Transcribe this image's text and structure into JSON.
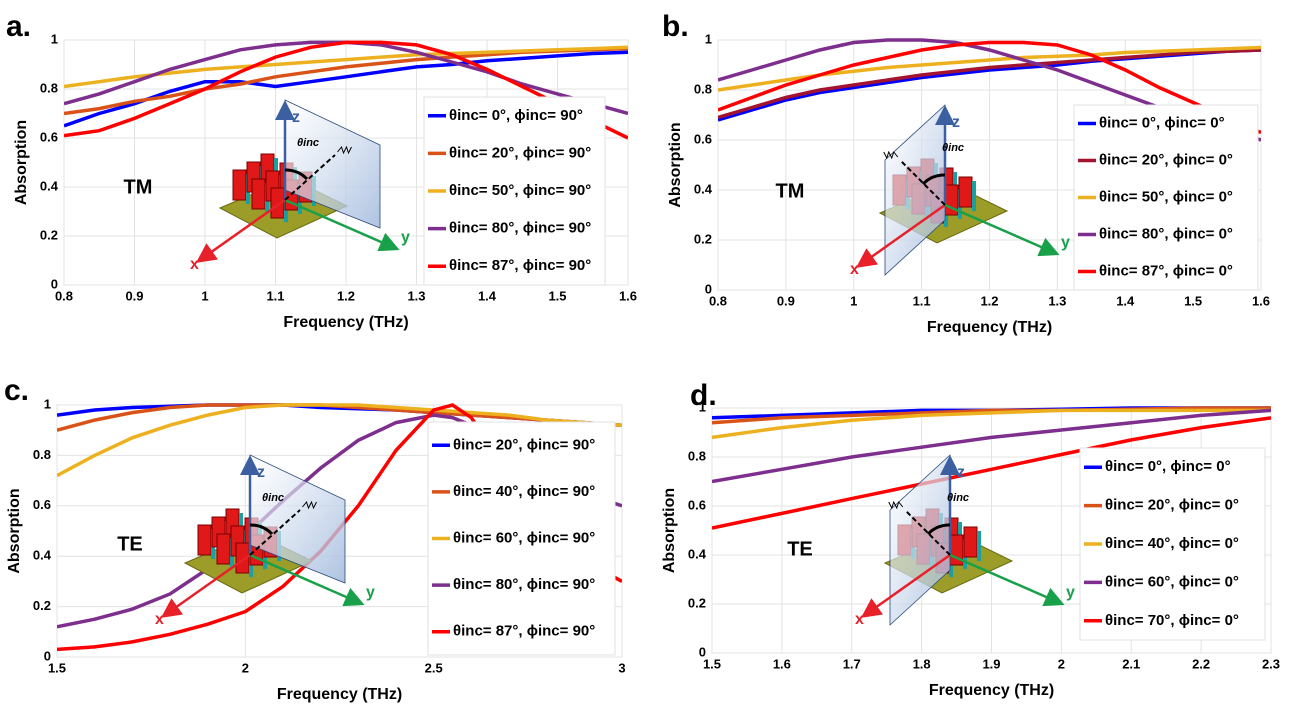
{
  "chart_data": [
    {
      "type": "line",
      "label": "a.",
      "xlabel": "Frequency (THz)",
      "ylabel": "Absorption",
      "annotations": [
        "TM",
        "x",
        "y",
        "z",
        "θinc"
      ],
      "x": [
        0.8,
        0.85,
        0.9,
        0.95,
        1.0,
        1.05,
        1.1,
        1.15,
        1.2,
        1.25,
        1.3,
        1.35,
        1.4,
        1.45,
        1.5,
        1.55,
        1.6
      ],
      "xlim": [
        0.8,
        1.6
      ],
      "ylim": [
        0,
        1
      ],
      "xticks": [
        0.8,
        0.9,
        1,
        1.1,
        1.2,
        1.3,
        1.4,
        1.5,
        1.6
      ],
      "yticks": [
        0,
        0.2,
        0.4,
        0.6,
        0.8,
        1
      ],
      "grid": true,
      "series": [
        {
          "name": "θinc= 0°, ϕinc= 90°",
          "color": "#0000ff",
          "values": [
            0.65,
            0.7,
            0.74,
            0.79,
            0.83,
            0.83,
            0.81,
            0.83,
            0.85,
            0.87,
            0.89,
            0.9,
            0.915,
            0.925,
            0.935,
            0.945,
            0.95
          ]
        },
        {
          "name": "θinc= 20°, ϕinc= 90°",
          "color": "#d95319",
          "values": [
            0.7,
            0.72,
            0.75,
            0.77,
            0.8,
            0.82,
            0.85,
            0.87,
            0.89,
            0.905,
            0.92,
            0.93,
            0.94,
            0.95,
            0.955,
            0.96,
            0.965
          ]
        },
        {
          "name": "θinc= 50°, ϕinc= 90°",
          "color": "#edb120",
          "values": [
            0.81,
            0.83,
            0.85,
            0.865,
            0.88,
            0.89,
            0.9,
            0.91,
            0.92,
            0.93,
            0.94,
            0.945,
            0.95,
            0.955,
            0.96,
            0.965,
            0.97
          ]
        },
        {
          "name": "θinc= 80°, ϕinc= 90°",
          "color": "#7e2f8e",
          "values": [
            0.74,
            0.78,
            0.83,
            0.88,
            0.92,
            0.96,
            0.98,
            0.99,
            0.99,
            0.98,
            0.95,
            0.91,
            0.87,
            0.82,
            0.78,
            0.74,
            0.7
          ]
        },
        {
          "name": "θinc= 87°, ϕinc= 90°",
          "color": "#ff0000",
          "values": [
            0.61,
            0.63,
            0.68,
            0.74,
            0.8,
            0.87,
            0.93,
            0.97,
            0.99,
            0.99,
            0.98,
            0.94,
            0.88,
            0.81,
            0.74,
            0.67,
            0.6
          ]
        }
      ]
    },
    {
      "type": "line",
      "label": "b.",
      "xlabel": "Frequency (THz)",
      "ylabel": "Absorption",
      "annotations": [
        "TM",
        "x",
        "y",
        "z",
        "θinc"
      ],
      "x": [
        0.8,
        0.85,
        0.9,
        0.95,
        1.0,
        1.05,
        1.1,
        1.15,
        1.2,
        1.25,
        1.3,
        1.35,
        1.4,
        1.45,
        1.5,
        1.55,
        1.6
      ],
      "xlim": [
        0.8,
        1.6
      ],
      "ylim": [
        0,
        1
      ],
      "xticks": [
        0.8,
        0.9,
        1,
        1.1,
        1.2,
        1.3,
        1.4,
        1.5,
        1.6
      ],
      "yticks": [
        0,
        0.2,
        0.4,
        0.6,
        0.8,
        1
      ],
      "grid": true,
      "series": [
        {
          "name": "θinc= 0°, ϕinc= 0°",
          "color": "#0000ff",
          "values": [
            0.68,
            0.72,
            0.76,
            0.79,
            0.81,
            0.83,
            0.85,
            0.865,
            0.88,
            0.89,
            0.9,
            0.915,
            0.925,
            0.935,
            0.945,
            0.955,
            0.96
          ]
        },
        {
          "name": "θinc= 20°, ϕinc= 0°",
          "color": "#a2142f",
          "values": [
            0.69,
            0.73,
            0.77,
            0.8,
            0.82,
            0.84,
            0.86,
            0.875,
            0.89,
            0.9,
            0.91,
            0.92,
            0.93,
            0.94,
            0.95,
            0.955,
            0.96
          ]
        },
        {
          "name": "θinc= 50°, ϕinc= 0°",
          "color": "#edb120",
          "values": [
            0.8,
            0.82,
            0.84,
            0.86,
            0.875,
            0.89,
            0.9,
            0.91,
            0.92,
            0.93,
            0.935,
            0.94,
            0.95,
            0.955,
            0.96,
            0.965,
            0.97
          ]
        },
        {
          "name": "θinc= 80°, ϕinc= 0°",
          "color": "#7e2f8e",
          "values": [
            0.84,
            0.88,
            0.92,
            0.96,
            0.99,
            1,
            1,
            0.99,
            0.96,
            0.92,
            0.88,
            0.83,
            0.78,
            0.73,
            0.68,
            0.64,
            0.6
          ]
        },
        {
          "name": "θinc= 87°, ϕinc= 0°",
          "color": "#ff0000",
          "values": [
            0.72,
            0.77,
            0.82,
            0.86,
            0.9,
            0.93,
            0.96,
            0.98,
            0.99,
            0.99,
            0.98,
            0.94,
            0.88,
            0.81,
            0.75,
            0.69,
            0.63
          ]
        }
      ]
    },
    {
      "type": "line",
      "label": "c.",
      "xlabel": "Frequency (THz)",
      "ylabel": "Absorption",
      "annotations": [
        "TE",
        "x",
        "y",
        "z",
        "θinc"
      ],
      "x": [
        1.5,
        1.6,
        1.7,
        1.8,
        1.9,
        2.0,
        2.1,
        2.2,
        2.3,
        2.4,
        2.5,
        2.55,
        2.6,
        2.7,
        2.8,
        2.9,
        3.0
      ],
      "xlim": [
        1.5,
        3
      ],
      "ylim": [
        0,
        1
      ],
      "xticks": [
        1.5,
        2,
        2.5,
        3
      ],
      "yticks": [
        0,
        0.2,
        0.4,
        0.6,
        0.8,
        1
      ],
      "grid": true,
      "series": [
        {
          "name": "θinc= 20°, ϕinc= 90°",
          "color": "#0000ff",
          "values": [
            0.96,
            0.98,
            0.99,
            0.995,
            1,
            1,
            1,
            0.99,
            0.985,
            0.98,
            0.97,
            0.965,
            0.96,
            0.95,
            0.94,
            0.93,
            0.92
          ]
        },
        {
          "name": "θinc= 40°, ϕinc= 90°",
          "color": "#d95319",
          "values": [
            0.9,
            0.94,
            0.97,
            0.99,
            1,
            1,
            1,
            1,
            0.99,
            0.98,
            0.97,
            0.965,
            0.96,
            0.95,
            0.94,
            0.93,
            0.92
          ]
        },
        {
          "name": "θinc= 60°, ϕinc= 90°",
          "color": "#edb120",
          "values": [
            0.72,
            0.8,
            0.87,
            0.92,
            0.96,
            0.99,
            1,
            1,
            1,
            0.99,
            0.98,
            0.975,
            0.97,
            0.96,
            0.94,
            0.93,
            0.92
          ]
        },
        {
          "name": "θinc= 80°, ϕinc= 90°",
          "color": "#7e2f8e",
          "values": [
            0.12,
            0.15,
            0.19,
            0.25,
            0.35,
            0.48,
            0.62,
            0.75,
            0.86,
            0.93,
            0.96,
            0.95,
            0.92,
            0.82,
            0.72,
            0.65,
            0.6
          ]
        },
        {
          "name": "θinc= 87°, ϕinc= 90°",
          "color": "#ff0000",
          "values": [
            0.03,
            0.04,
            0.06,
            0.09,
            0.13,
            0.18,
            0.28,
            0.42,
            0.6,
            0.82,
            0.98,
            1,
            0.95,
            0.72,
            0.5,
            0.38,
            0.3
          ]
        }
      ]
    },
    {
      "type": "line",
      "label": "d.",
      "xlabel": "Frequency (THz)",
      "ylabel": "Absorption",
      "annotations": [
        "TE",
        "x",
        "y",
        "z",
        "θinc"
      ],
      "x": [
        1.5,
        1.6,
        1.7,
        1.8,
        1.9,
        2.0,
        2.1,
        2.2,
        2.3
      ],
      "xlim": [
        1.5,
        2.3
      ],
      "ylim": [
        0,
        1
      ],
      "xticks": [
        1.5,
        1.6,
        1.7,
        1.8,
        1.9,
        2,
        2.1,
        2.2,
        2.3
      ],
      "yticks": [
        0,
        0.2,
        0.4,
        0.6,
        0.8,
        1
      ],
      "grid": true,
      "series": [
        {
          "name": "θinc= 0°, ϕinc= 0°",
          "color": "#0000ff",
          "values": [
            0.96,
            0.97,
            0.98,
            0.99,
            0.99,
            0.995,
            1,
            1,
            1
          ]
        },
        {
          "name": "θinc= 20°, ϕinc= 0°",
          "color": "#d95319",
          "values": [
            0.94,
            0.96,
            0.97,
            0.98,
            0.99,
            0.99,
            0.995,
            1,
            1
          ]
        },
        {
          "name": "θinc= 40°, ϕinc= 0°",
          "color": "#edb120",
          "values": [
            0.88,
            0.92,
            0.95,
            0.97,
            0.98,
            0.99,
            0.99,
            0.99,
            0.99
          ]
        },
        {
          "name": "θinc= 60°, ϕinc= 0°",
          "color": "#7e2f8e",
          "values": [
            0.7,
            0.75,
            0.8,
            0.84,
            0.88,
            0.91,
            0.94,
            0.97,
            0.99
          ]
        },
        {
          "name": "θinc= 70°, ϕinc= 0°",
          "color": "#ff0000",
          "values": [
            0.51,
            0.57,
            0.63,
            0.69,
            0.75,
            0.81,
            0.87,
            0.92,
            0.96
          ]
        }
      ]
    }
  ]
}
